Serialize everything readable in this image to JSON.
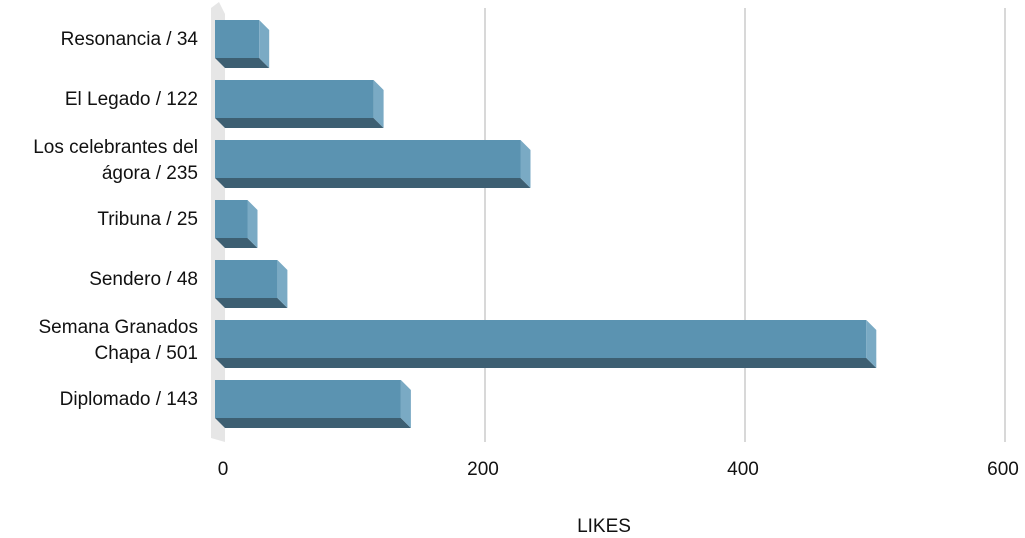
{
  "chart_data": {
    "type": "bar",
    "orientation": "horizontal",
    "style": "3d",
    "categories": [
      [
        "Resonancia / 34"
      ],
      [
        "El Legado / 122"
      ],
      [
        "Los celebrantes del",
        "ágora / 235"
      ],
      [
        "Tribuna / 25"
      ],
      [
        "Sendero / 48"
      ],
      [
        "Semana Granados",
        "Chapa / 501"
      ],
      [
        "Diplomado / 143"
      ]
    ],
    "values": [
      34,
      122,
      235,
      25,
      48,
      501,
      143
    ],
    "xlabel": "LIKES",
    "ylabel": "",
    "xlim": [
      0,
      600
    ],
    "xticks": [
      0,
      200,
      400,
      600
    ],
    "xtick_labels": [
      "0",
      "200",
      "400",
      "600"
    ],
    "grid": true,
    "colors": {
      "bar_front": "#5b93b1",
      "bar_bottom": "#3d5f72",
      "bar_side": "#7aaac4",
      "wall": "#e6e6e6",
      "grid": "#c8c8c8"
    }
  }
}
